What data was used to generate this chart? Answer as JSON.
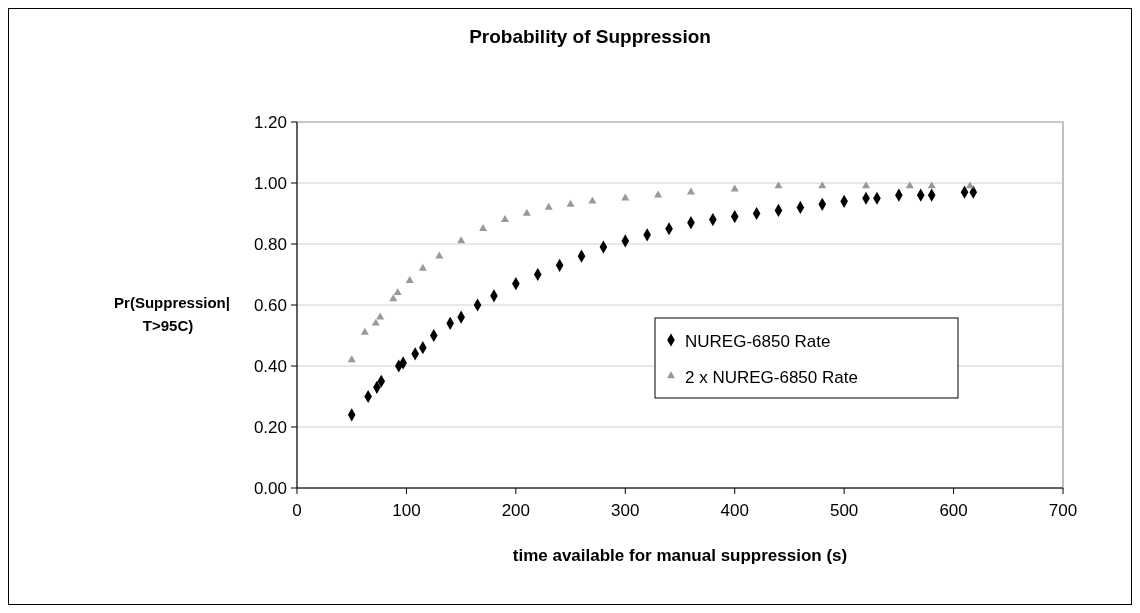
{
  "chart_data": {
    "type": "scatter",
    "title": "Probability of Suppression",
    "xlabel": "time available for manual suppression (s)",
    "ylabel": "Pr(Suppression|\nT>95C)",
    "xlim": [
      0,
      700
    ],
    "xticks": [
      0,
      100,
      200,
      300,
      400,
      500,
      600,
      700
    ],
    "ylim": [
      0,
      1.2
    ],
    "yticks": [
      {
        "value": 0,
        "label": "0.00"
      },
      {
        "value": 0.2,
        "label": "0.20"
      },
      {
        "value": 0.4,
        "label": "0.40"
      },
      {
        "value": 0.6,
        "label": "0.60"
      },
      {
        "value": 0.8,
        "label": "0.80"
      },
      {
        "value": 1,
        "label": "1.00"
      },
      {
        "value": 1.2,
        "label": "1.20"
      }
    ],
    "grid": "y",
    "legend": "right",
    "series": [
      {
        "name": "NUREG-6850 Rate",
        "color": "#000000",
        "marker": "diamond",
        "x": [
          50,
          65,
          73,
          77,
          93,
          97,
          108,
          115,
          125,
          140,
          150,
          165,
          180,
          200,
          220,
          240,
          260,
          280,
          300,
          320,
          340,
          360,
          380,
          400,
          420,
          440,
          460,
          480,
          500,
          520,
          530,
          550,
          570,
          580,
          610,
          618
        ],
        "values": [
          0.24,
          0.3,
          0.33,
          0.35,
          0.4,
          0.41,
          0.44,
          0.46,
          0.5,
          0.54,
          0.56,
          0.6,
          0.63,
          0.67,
          0.7,
          0.73,
          0.76,
          0.79,
          0.81,
          0.83,
          0.85,
          0.87,
          0.88,
          0.89,
          0.9,
          0.91,
          0.92,
          0.93,
          0.94,
          0.95,
          0.95,
          0.96,
          0.96,
          0.96,
          0.97,
          0.97
        ]
      },
      {
        "name": "2 x NUREG-6850 Rate",
        "color": "#999999",
        "marker": "triangle",
        "x": [
          50,
          62,
          72,
          76,
          88,
          92,
          103,
          115,
          130,
          150,
          170,
          190,
          210,
          230,
          250,
          270,
          300,
          330,
          360,
          400,
          440,
          480,
          520,
          560,
          580,
          615
        ],
        "values": [
          0.42,
          0.51,
          0.54,
          0.56,
          0.62,
          0.64,
          0.68,
          0.72,
          0.76,
          0.81,
          0.85,
          0.88,
          0.9,
          0.92,
          0.93,
          0.94,
          0.95,
          0.96,
          0.97,
          0.98,
          0.99,
          0.99,
          0.99,
          0.99,
          0.99,
          0.99
        ]
      }
    ]
  }
}
